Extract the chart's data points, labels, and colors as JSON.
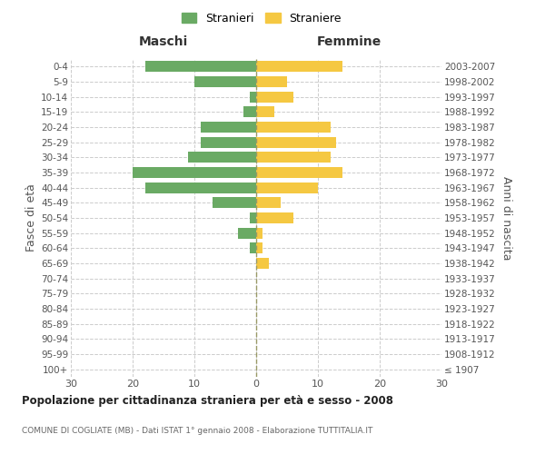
{
  "age_groups": [
    "100+",
    "95-99",
    "90-94",
    "85-89",
    "80-84",
    "75-79",
    "70-74",
    "65-69",
    "60-64",
    "55-59",
    "50-54",
    "45-49",
    "40-44",
    "35-39",
    "30-34",
    "25-29",
    "20-24",
    "15-19",
    "10-14",
    "5-9",
    "0-4"
  ],
  "birth_years": [
    "≤ 1907",
    "1908-1912",
    "1913-1917",
    "1918-1922",
    "1923-1927",
    "1928-1932",
    "1933-1937",
    "1938-1942",
    "1943-1947",
    "1948-1952",
    "1953-1957",
    "1958-1962",
    "1963-1967",
    "1968-1972",
    "1973-1977",
    "1978-1982",
    "1983-1987",
    "1988-1992",
    "1993-1997",
    "1998-2002",
    "2003-2007"
  ],
  "maschi": [
    0,
    0,
    0,
    0,
    0,
    0,
    0,
    0,
    1,
    3,
    1,
    7,
    18,
    20,
    11,
    9,
    9,
    2,
    1,
    10,
    18
  ],
  "femmine": [
    0,
    0,
    0,
    0,
    0,
    0,
    0,
    2,
    1,
    1,
    6,
    4,
    10,
    14,
    12,
    13,
    12,
    3,
    6,
    5,
    14
  ],
  "maschi_color": "#6aaa64",
  "femmine_color": "#f5c842",
  "title": "Popolazione per cittadinanza straniera per età e sesso - 2008",
  "subtitle": "COMUNE DI COGLIATE (MB) - Dati ISTAT 1° gennaio 2008 - Elaborazione TUTTITALIA.IT",
  "left_label": "Maschi",
  "right_label": "Femmine",
  "yleft_label": "Fasce di età",
  "yright_label": "Anni di nascita",
  "legend_maschi": "Stranieri",
  "legend_femmine": "Straniere",
  "xlim": 30,
  "background_color": "#ffffff",
  "grid_color": "#cccccc"
}
